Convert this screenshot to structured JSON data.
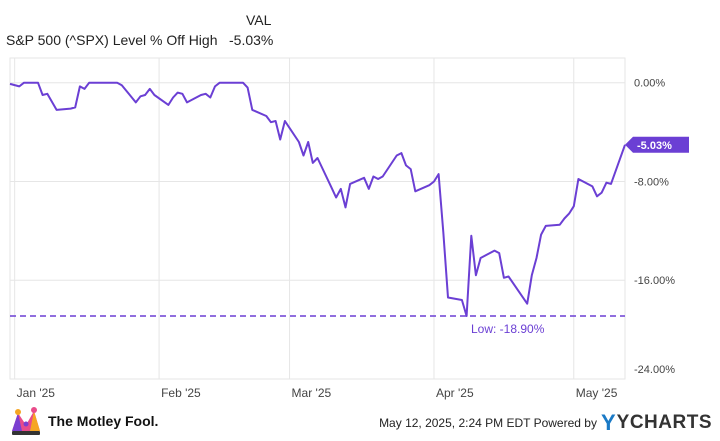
{
  "legend": {
    "column_header": "VAL",
    "series_name": "S&P 500 (^SPX) Level % Off High",
    "series_value": "-5.03%"
  },
  "footer": {
    "brand": "The Motley Fool.",
    "brand_icon": "jester-cap-icon",
    "timestamp": "May 12, 2025, 2:24 PM EDT Powered by",
    "provider": "YCHARTS",
    "provider_icon": "ycharts-y-logo"
  },
  "colors": {
    "series": "#6b3fd4",
    "grid": "#e6e6e6",
    "axis_text": "#444444",
    "label_bg": "#6b3fd4",
    "label_text": "#ffffff"
  },
  "chart_data": {
    "type": "line",
    "x_start": "2024-12-31",
    "x_end": "2025-05-12",
    "x_ticks": [
      {
        "date": "2025-01-01",
        "label": "Jan '25"
      },
      {
        "date": "2025-02-01",
        "label": "Feb '25"
      },
      {
        "date": "2025-03-01",
        "label": "Mar '25"
      },
      {
        "date": "2025-04-01",
        "label": "Apr '25"
      },
      {
        "date": "2025-05-01",
        "label": "May '25"
      }
    ],
    "ylim": [
      -24,
      2
    ],
    "y_ticks": [
      {
        "value": 0,
        "label": "0.00%"
      },
      {
        "value": -8,
        "label": "-8.00%"
      },
      {
        "value": -16,
        "label": "-16.00%"
      },
      {
        "value": -24,
        "label": "-24.00%"
      }
    ],
    "grid": true,
    "series": [
      {
        "name": "S&P 500 (^SPX) Level % Off High",
        "points": [
          [
            "2024-12-31",
            -0.1
          ],
          [
            "2025-01-02",
            -0.3
          ],
          [
            "2025-01-03",
            0.0
          ],
          [
            "2025-01-06",
            0.0
          ],
          [
            "2025-01-07",
            -1.0
          ],
          [
            "2025-01-08",
            -0.9
          ],
          [
            "2025-01-10",
            -2.2
          ],
          [
            "2025-01-13",
            -2.1
          ],
          [
            "2025-01-14",
            -2.0
          ],
          [
            "2025-01-15",
            -0.3
          ],
          [
            "2025-01-16",
            -0.5
          ],
          [
            "2025-01-17",
            0.0
          ],
          [
            "2025-01-21",
            0.0
          ],
          [
            "2025-01-22",
            0.0
          ],
          [
            "2025-01-23",
            0.0
          ],
          [
            "2025-01-24",
            -0.2
          ],
          [
            "2025-01-27",
            -1.6
          ],
          [
            "2025-01-28",
            -1.1
          ],
          [
            "2025-01-29",
            -1.0
          ],
          [
            "2025-01-30",
            -0.5
          ],
          [
            "2025-01-31",
            -1.0
          ],
          [
            "2025-02-03",
            -1.8
          ],
          [
            "2025-02-04",
            -1.2
          ],
          [
            "2025-02-05",
            -0.8
          ],
          [
            "2025-02-06",
            -0.9
          ],
          [
            "2025-02-07",
            -1.6
          ],
          [
            "2025-02-10",
            -1.0
          ],
          [
            "2025-02-11",
            -0.9
          ],
          [
            "2025-02-12",
            -1.2
          ],
          [
            "2025-02-13",
            -0.3
          ],
          [
            "2025-02-14",
            0.0
          ],
          [
            "2025-02-18",
            0.0
          ],
          [
            "2025-02-19",
            0.0
          ],
          [
            "2025-02-20",
            -0.4
          ],
          [
            "2025-02-21",
            -2.2
          ],
          [
            "2025-02-24",
            -2.7
          ],
          [
            "2025-02-25",
            -3.2
          ],
          [
            "2025-02-26",
            -3.1
          ],
          [
            "2025-02-27",
            -4.6
          ],
          [
            "2025-02-28",
            -3.1
          ],
          [
            "2025-03-03",
            -4.8
          ],
          [
            "2025-03-04",
            -5.9
          ],
          [
            "2025-03-05",
            -4.8
          ],
          [
            "2025-03-06",
            -6.5
          ],
          [
            "2025-03-07",
            -6.1
          ],
          [
            "2025-03-10",
            -8.5
          ],
          [
            "2025-03-11",
            -9.3
          ],
          [
            "2025-03-12",
            -8.6
          ],
          [
            "2025-03-13",
            -10.1
          ],
          [
            "2025-03-14",
            -8.2
          ],
          [
            "2025-03-17",
            -7.7
          ],
          [
            "2025-03-18",
            -8.6
          ],
          [
            "2025-03-19",
            -7.6
          ],
          [
            "2025-03-20",
            -7.8
          ],
          [
            "2025-03-21",
            -7.6
          ],
          [
            "2025-03-24",
            -5.9
          ],
          [
            "2025-03-25",
            -5.7
          ],
          [
            "2025-03-26",
            -6.7
          ],
          [
            "2025-03-27",
            -7.0
          ],
          [
            "2025-03-28",
            -8.8
          ],
          [
            "2025-03-31",
            -8.3
          ],
          [
            "2025-04-01",
            -8.0
          ],
          [
            "2025-04-02",
            -7.4
          ],
          [
            "2025-04-03",
            -12.1
          ],
          [
            "2025-04-04",
            -17.4
          ],
          [
            "2025-04-07",
            -17.6
          ],
          [
            "2025-04-08",
            -18.9
          ],
          [
            "2025-04-09",
            -12.4
          ],
          [
            "2025-04-10",
            -15.6
          ],
          [
            "2025-04-11",
            -14.2
          ],
          [
            "2025-04-14",
            -13.6
          ],
          [
            "2025-04-15",
            -13.8
          ],
          [
            "2025-04-16",
            -15.8
          ],
          [
            "2025-04-17",
            -15.7
          ],
          [
            "2025-04-21",
            -17.9
          ],
          [
            "2025-04-22",
            -15.6
          ],
          [
            "2025-04-23",
            -14.2
          ],
          [
            "2025-04-24",
            -12.3
          ],
          [
            "2025-04-25",
            -11.6
          ],
          [
            "2025-04-28",
            -11.5
          ],
          [
            "2025-04-29",
            -11.0
          ],
          [
            "2025-04-30",
            -10.6
          ],
          [
            "2025-05-01",
            -10.0
          ],
          [
            "2025-05-02",
            -7.8
          ],
          [
            "2025-05-05",
            -8.4
          ],
          [
            "2025-05-06",
            -9.2
          ],
          [
            "2025-05-07",
            -8.9
          ],
          [
            "2025-05-08",
            -8.1
          ],
          [
            "2025-05-09",
            -8.2
          ],
          [
            "2025-05-12",
            -5.03
          ]
        ],
        "end_label": "-5.03%"
      }
    ],
    "reference_lines": [
      {
        "name": "low",
        "value": -18.9,
        "label": "Low: -18.90%",
        "style": "dashed"
      }
    ]
  }
}
